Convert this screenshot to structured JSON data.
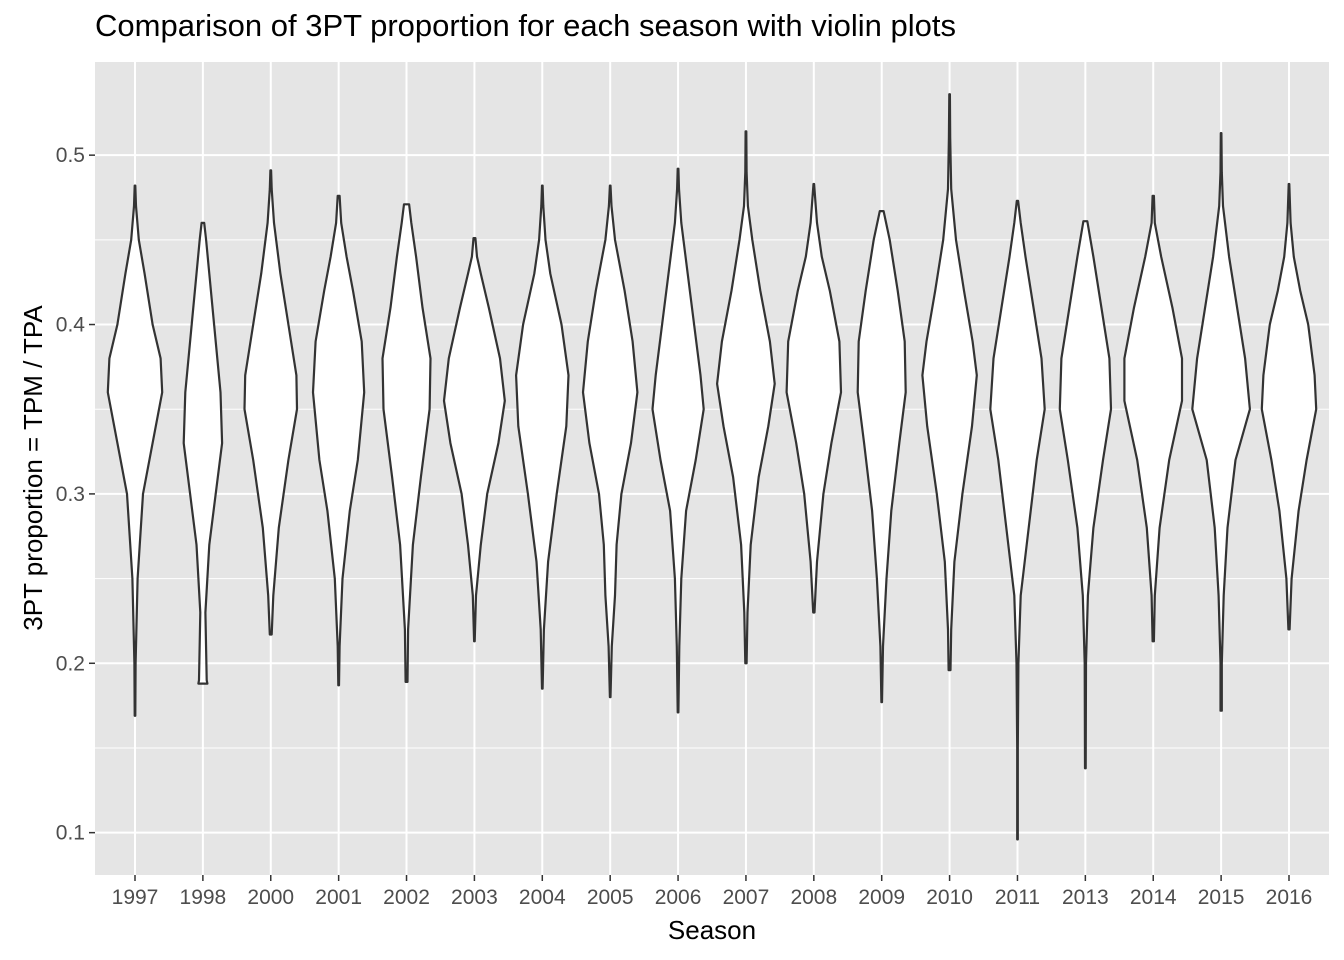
{
  "chart_data": {
    "type": "violin",
    "title": "Comparison of 3PT proportion for each season with violin plots",
    "xlabel": "Season",
    "ylabel": "3PT proportion = TPM / TPA",
    "ylim": [
      0.075,
      0.555
    ],
    "yticks": [
      0.1,
      0.2,
      0.3,
      0.4,
      0.5
    ],
    "ytick_labels": [
      "0.1",
      "0.2",
      "0.3",
      "0.4",
      "0.5"
    ],
    "grid": true,
    "background": "#e5e5e5",
    "grid_color": "#ffffff",
    "violin_fill": "#ffffff",
    "violin_stroke": "#333333",
    "categories": [
      "1997",
      "1998",
      "2000",
      "2001",
      "2002",
      "2003",
      "2004",
      "2005",
      "2006",
      "2007",
      "2008",
      "2009",
      "2010",
      "2011",
      "2013",
      "2014",
      "2015",
      "2016"
    ],
    "violins": [
      {
        "season": "1997",
        "min": 0.169,
        "max": 0.482,
        "profile": [
          [
            0.169,
            0.01
          ],
          [
            0.2,
            0.02
          ],
          [
            0.25,
            0.08
          ],
          [
            0.3,
            0.25
          ],
          [
            0.33,
            0.55
          ],
          [
            0.36,
            0.85
          ],
          [
            0.38,
            0.8
          ],
          [
            0.4,
            0.55
          ],
          [
            0.43,
            0.3
          ],
          [
            0.45,
            0.12
          ],
          [
            0.47,
            0.03
          ],
          [
            0.482,
            0.01
          ]
        ]
      },
      {
        "season": "1998",
        "min": 0.188,
        "max": 0.46,
        "profile": [
          [
            0.188,
            0.14
          ],
          [
            0.19,
            0.12
          ],
          [
            0.23,
            0.08
          ],
          [
            0.27,
            0.2
          ],
          [
            0.3,
            0.4
          ],
          [
            0.33,
            0.6
          ],
          [
            0.36,
            0.55
          ],
          [
            0.4,
            0.35
          ],
          [
            0.43,
            0.2
          ],
          [
            0.45,
            0.1
          ],
          [
            0.46,
            0.04
          ]
        ]
      },
      {
        "season": "2000",
        "min": 0.217,
        "max": 0.491,
        "profile": [
          [
            0.217,
            0.03
          ],
          [
            0.24,
            0.08
          ],
          [
            0.28,
            0.25
          ],
          [
            0.32,
            0.55
          ],
          [
            0.35,
            0.82
          ],
          [
            0.37,
            0.8
          ],
          [
            0.4,
            0.55
          ],
          [
            0.43,
            0.3
          ],
          [
            0.46,
            0.1
          ],
          [
            0.48,
            0.03
          ],
          [
            0.491,
            0.01
          ]
        ]
      },
      {
        "season": "2001",
        "min": 0.187,
        "max": 0.476,
        "profile": [
          [
            0.187,
            0.01
          ],
          [
            0.21,
            0.03
          ],
          [
            0.25,
            0.12
          ],
          [
            0.29,
            0.35
          ],
          [
            0.32,
            0.6
          ],
          [
            0.36,
            0.8
          ],
          [
            0.39,
            0.72
          ],
          [
            0.42,
            0.45
          ],
          [
            0.44,
            0.25
          ],
          [
            0.46,
            0.08
          ],
          [
            0.476,
            0.03
          ]
        ]
      },
      {
        "season": "2002",
        "min": 0.189,
        "max": 0.471,
        "profile": [
          [
            0.189,
            0.03
          ],
          [
            0.22,
            0.05
          ],
          [
            0.27,
            0.2
          ],
          [
            0.31,
            0.45
          ],
          [
            0.35,
            0.72
          ],
          [
            0.38,
            0.75
          ],
          [
            0.41,
            0.5
          ],
          [
            0.44,
            0.3
          ],
          [
            0.46,
            0.15
          ],
          [
            0.471,
            0.08
          ]
        ]
      },
      {
        "season": "2003",
        "min": 0.213,
        "max": 0.451,
        "profile": [
          [
            0.213,
            0.01
          ],
          [
            0.24,
            0.05
          ],
          [
            0.27,
            0.2
          ],
          [
            0.3,
            0.4
          ],
          [
            0.33,
            0.75
          ],
          [
            0.355,
            0.95
          ],
          [
            0.38,
            0.8
          ],
          [
            0.41,
            0.45
          ],
          [
            0.43,
            0.2
          ],
          [
            0.44,
            0.08
          ],
          [
            0.451,
            0.03
          ]
        ]
      },
      {
        "season": "2004",
        "min": 0.185,
        "max": 0.482,
        "profile": [
          [
            0.185,
            0.01
          ],
          [
            0.22,
            0.05
          ],
          [
            0.26,
            0.18
          ],
          [
            0.3,
            0.45
          ],
          [
            0.34,
            0.75
          ],
          [
            0.37,
            0.82
          ],
          [
            0.4,
            0.6
          ],
          [
            0.43,
            0.25
          ],
          [
            0.45,
            0.1
          ],
          [
            0.47,
            0.03
          ],
          [
            0.482,
            0.01
          ]
        ]
      },
      {
        "season": "2005",
        "min": 0.18,
        "max": 0.482,
        "profile": [
          [
            0.18,
            0.01
          ],
          [
            0.21,
            0.05
          ],
          [
            0.24,
            0.15
          ],
          [
            0.27,
            0.2
          ],
          [
            0.3,
            0.35
          ],
          [
            0.33,
            0.65
          ],
          [
            0.36,
            0.85
          ],
          [
            0.39,
            0.7
          ],
          [
            0.42,
            0.45
          ],
          [
            0.45,
            0.15
          ],
          [
            0.47,
            0.04
          ],
          [
            0.482,
            0.01
          ]
        ]
      },
      {
        "season": "2006",
        "min": 0.171,
        "max": 0.492,
        "profile": [
          [
            0.171,
            0.01
          ],
          [
            0.21,
            0.04
          ],
          [
            0.25,
            0.1
          ],
          [
            0.29,
            0.25
          ],
          [
            0.32,
            0.55
          ],
          [
            0.35,
            0.8
          ],
          [
            0.37,
            0.7
          ],
          [
            0.4,
            0.5
          ],
          [
            0.43,
            0.3
          ],
          [
            0.46,
            0.1
          ],
          [
            0.48,
            0.03
          ],
          [
            0.492,
            0.01
          ]
        ]
      },
      {
        "season": "2007",
        "min": 0.2,
        "max": 0.514,
        "profile": [
          [
            0.2,
            0.02
          ],
          [
            0.23,
            0.05
          ],
          [
            0.27,
            0.15
          ],
          [
            0.31,
            0.4
          ],
          [
            0.34,
            0.7
          ],
          [
            0.365,
            0.9
          ],
          [
            0.39,
            0.75
          ],
          [
            0.42,
            0.45
          ],
          [
            0.45,
            0.2
          ],
          [
            0.47,
            0.06
          ],
          [
            0.49,
            0.02
          ],
          [
            0.514,
            0.01
          ]
        ]
      },
      {
        "season": "2008",
        "min": 0.23,
        "max": 0.483,
        "profile": [
          [
            0.23,
            0.02
          ],
          [
            0.26,
            0.1
          ],
          [
            0.3,
            0.3
          ],
          [
            0.33,
            0.55
          ],
          [
            0.36,
            0.85
          ],
          [
            0.39,
            0.8
          ],
          [
            0.42,
            0.5
          ],
          [
            0.44,
            0.25
          ],
          [
            0.46,
            0.1
          ],
          [
            0.483,
            0.01
          ]
        ]
      },
      {
        "season": "2009",
        "min": 0.177,
        "max": 0.467,
        "profile": [
          [
            0.177,
            0.01
          ],
          [
            0.21,
            0.04
          ],
          [
            0.25,
            0.15
          ],
          [
            0.29,
            0.3
          ],
          [
            0.33,
            0.55
          ],
          [
            0.36,
            0.75
          ],
          [
            0.39,
            0.72
          ],
          [
            0.42,
            0.5
          ],
          [
            0.45,
            0.25
          ],
          [
            0.467,
            0.06
          ]
        ]
      },
      {
        "season": "2010",
        "min": 0.196,
        "max": 0.536,
        "profile": [
          [
            0.196,
            0.03
          ],
          [
            0.22,
            0.05
          ],
          [
            0.26,
            0.15
          ],
          [
            0.3,
            0.4
          ],
          [
            0.34,
            0.7
          ],
          [
            0.37,
            0.85
          ],
          [
            0.39,
            0.72
          ],
          [
            0.42,
            0.45
          ],
          [
            0.45,
            0.2
          ],
          [
            0.48,
            0.05
          ],
          [
            0.51,
            0.02
          ],
          [
            0.536,
            0.01
          ]
        ]
      },
      {
        "season": "2011",
        "min": 0.096,
        "max": 0.473,
        "profile": [
          [
            0.096,
            0.01
          ],
          [
            0.15,
            0.01
          ],
          [
            0.2,
            0.03
          ],
          [
            0.24,
            0.1
          ],
          [
            0.28,
            0.35
          ],
          [
            0.32,
            0.6
          ],
          [
            0.35,
            0.85
          ],
          [
            0.38,
            0.75
          ],
          [
            0.41,
            0.5
          ],
          [
            0.44,
            0.25
          ],
          [
            0.46,
            0.1
          ],
          [
            0.473,
            0.02
          ]
        ]
      },
      {
        "season": "2013",
        "min": 0.138,
        "max": 0.461,
        "profile": [
          [
            0.138,
            0.01
          ],
          [
            0.2,
            0.02
          ],
          [
            0.24,
            0.08
          ],
          [
            0.28,
            0.25
          ],
          [
            0.32,
            0.55
          ],
          [
            0.35,
            0.8
          ],
          [
            0.38,
            0.75
          ],
          [
            0.41,
            0.5
          ],
          [
            0.44,
            0.25
          ],
          [
            0.461,
            0.06
          ]
        ]
      },
      {
        "season": "2014",
        "min": 0.213,
        "max": 0.476,
        "profile": [
          [
            0.213,
            0.02
          ],
          [
            0.24,
            0.05
          ],
          [
            0.28,
            0.2
          ],
          [
            0.32,
            0.5
          ],
          [
            0.355,
            0.9
          ],
          [
            0.38,
            0.9
          ],
          [
            0.41,
            0.6
          ],
          [
            0.44,
            0.25
          ],
          [
            0.46,
            0.05
          ],
          [
            0.476,
            0.02
          ]
        ]
      },
      {
        "season": "2015",
        "min": 0.172,
        "max": 0.513,
        "profile": [
          [
            0.172,
            0.02
          ],
          [
            0.2,
            0.02
          ],
          [
            0.24,
            0.08
          ],
          [
            0.28,
            0.2
          ],
          [
            0.32,
            0.45
          ],
          [
            0.35,
            0.9
          ],
          [
            0.38,
            0.75
          ],
          [
            0.41,
            0.5
          ],
          [
            0.44,
            0.25
          ],
          [
            0.47,
            0.06
          ],
          [
            0.49,
            0.02
          ],
          [
            0.513,
            0.01
          ]
        ]
      },
      {
        "season": "2016",
        "min": 0.22,
        "max": 0.483,
        "profile": [
          [
            0.22,
            0.02
          ],
          [
            0.25,
            0.08
          ],
          [
            0.29,
            0.3
          ],
          [
            0.32,
            0.55
          ],
          [
            0.35,
            0.85
          ],
          [
            0.37,
            0.8
          ],
          [
            0.4,
            0.6
          ],
          [
            0.42,
            0.35
          ],
          [
            0.44,
            0.15
          ],
          [
            0.46,
            0.05
          ],
          [
            0.483,
            0.01
          ]
        ]
      }
    ]
  }
}
